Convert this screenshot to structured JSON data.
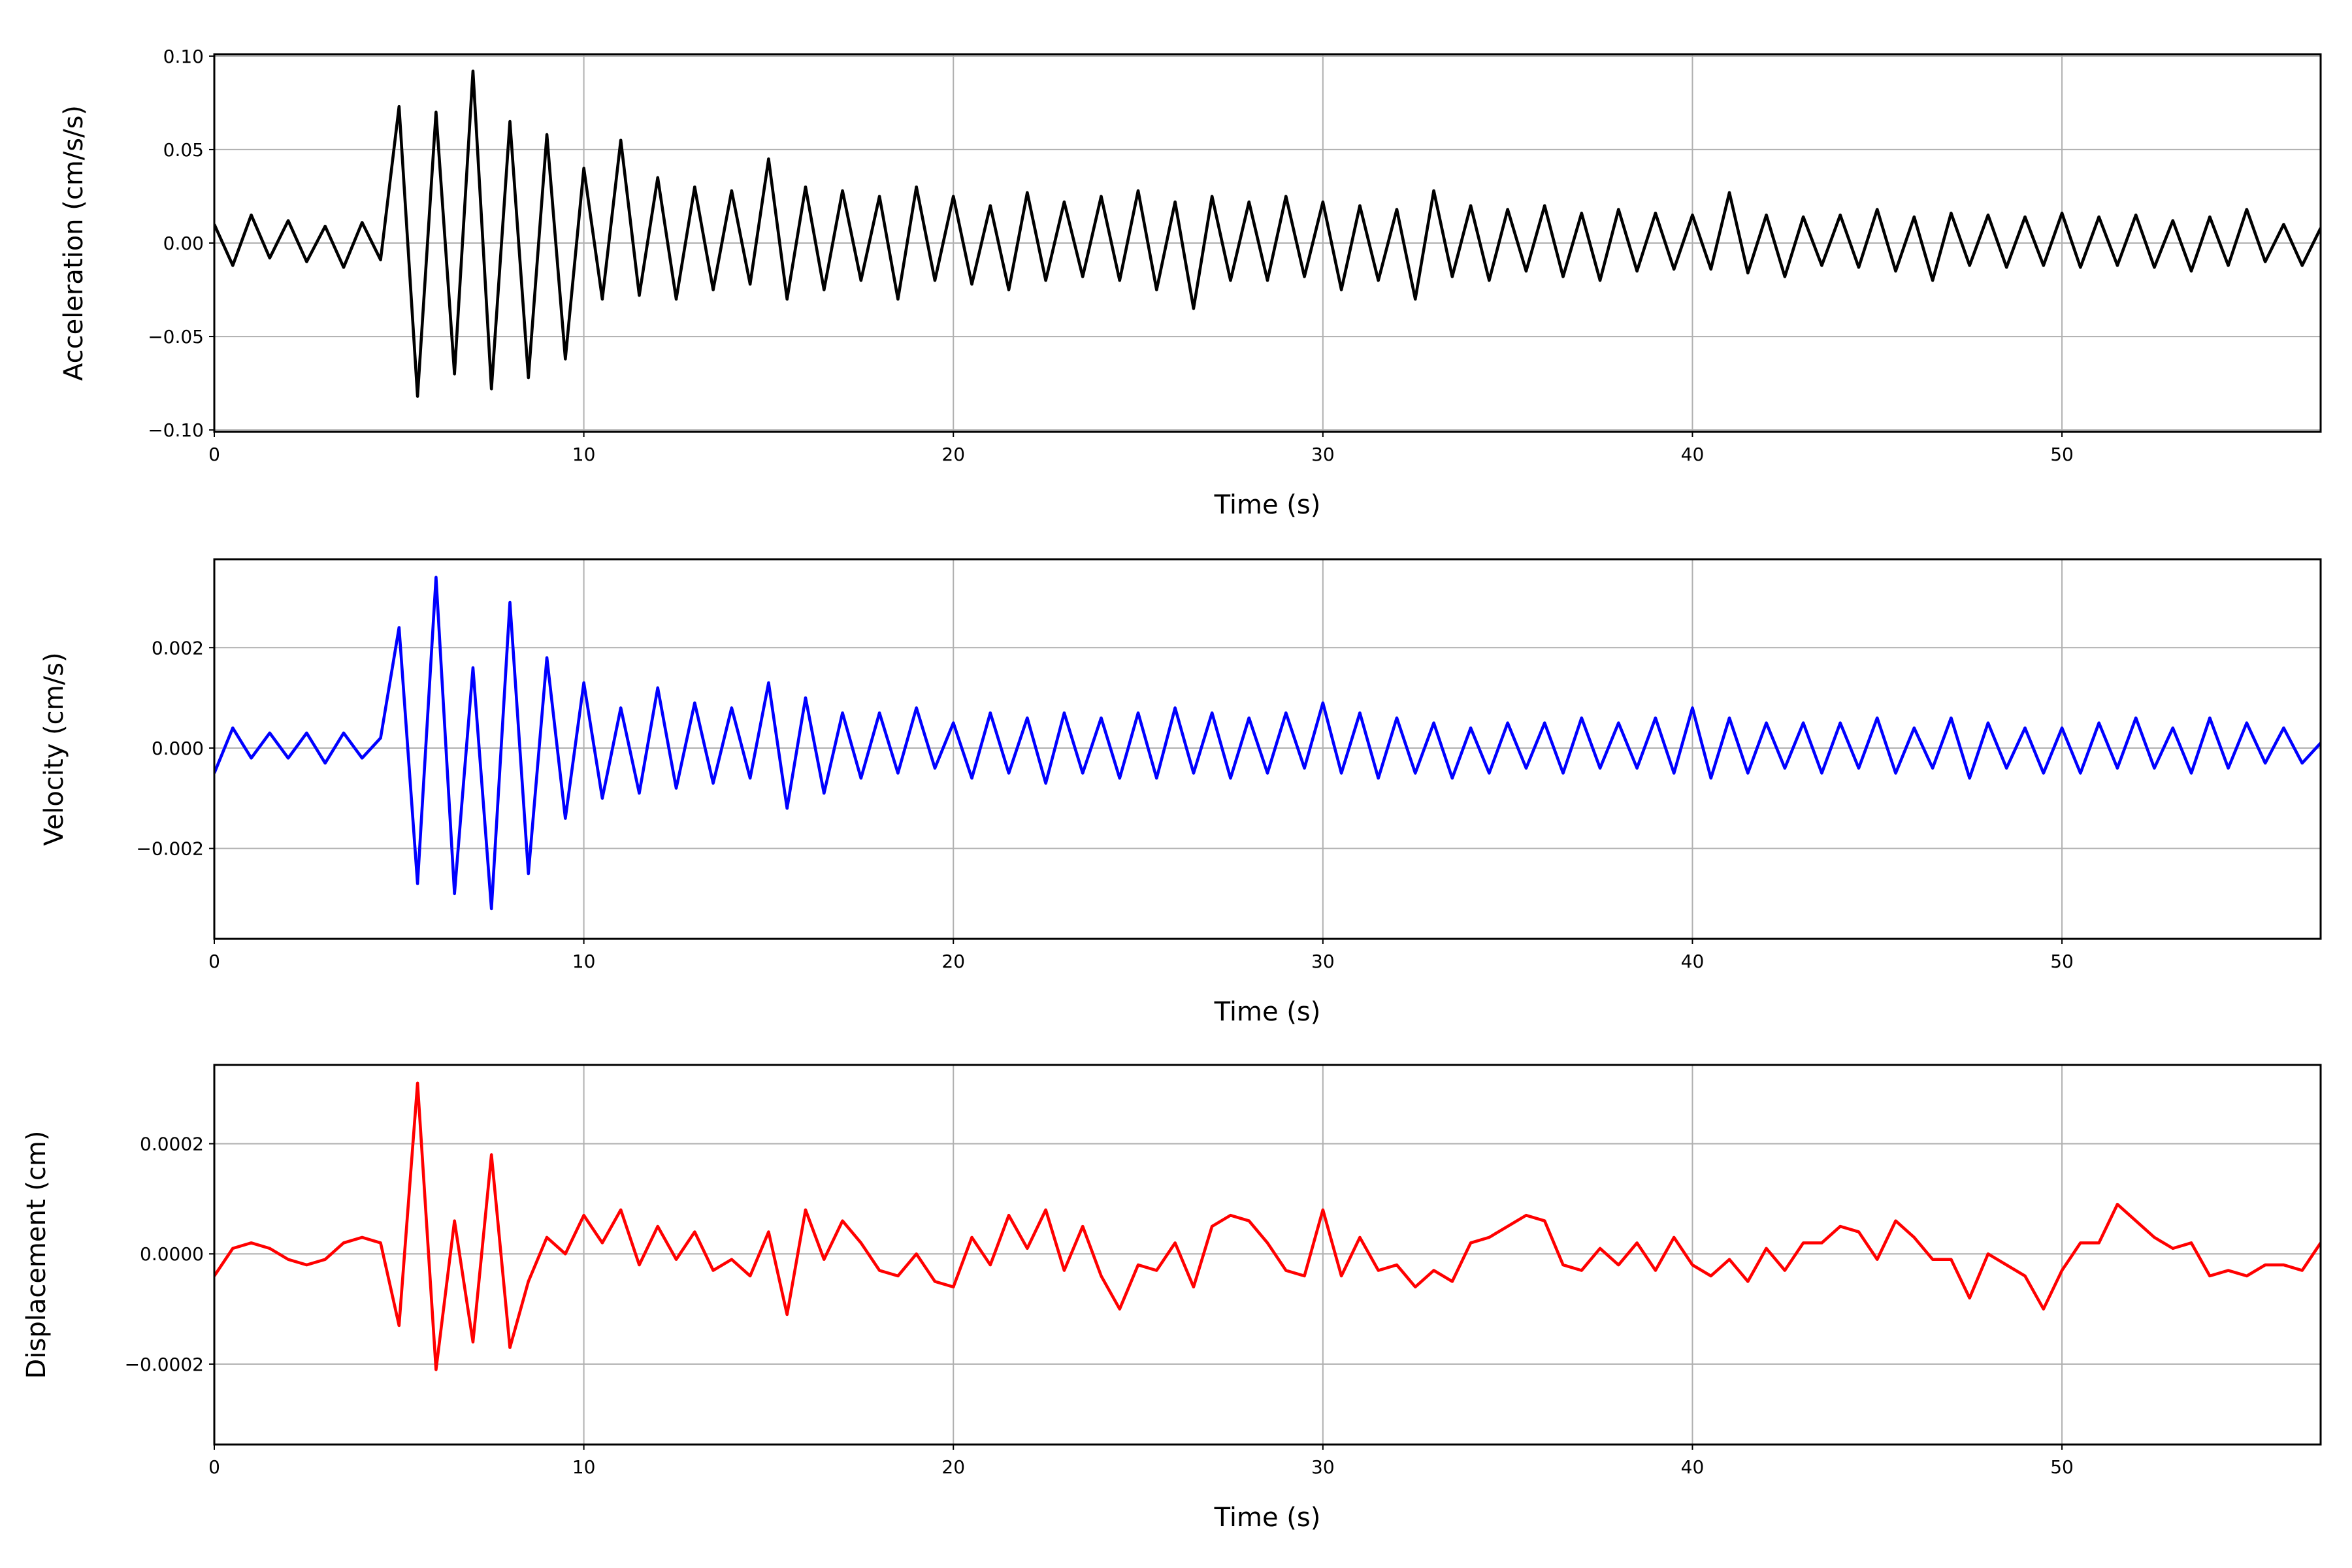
{
  "chart_data": [
    {
      "type": "line",
      "xlabel": "Time (s)",
      "ylabel": "Acceleration (cm/s/s)",
      "color": "#000000",
      "grid": true,
      "xlim": [
        0,
        57
      ],
      "xticks": [
        0,
        10,
        20,
        30,
        40,
        50
      ],
      "ylim": [
        -0.101,
        0.101
      ],
      "yticks": [
        {
          "value": -0.1,
          "label": "−0.10"
        },
        {
          "value": -0.05,
          "label": "−0.05"
        },
        {
          "value": 0,
          "label": "0.00"
        },
        {
          "value": 0.05,
          "label": "0.05"
        },
        {
          "value": 0.1,
          "label": "0.10"
        }
      ],
      "x": [
        0,
        0.5,
        1,
        1.5,
        2,
        2.5,
        3,
        3.5,
        4,
        4.5,
        5,
        5.5,
        6,
        6.5,
        7,
        7.5,
        8,
        8.5,
        9,
        9.5,
        10,
        10.5,
        11,
        11.5,
        12,
        12.5,
        13,
        13.5,
        14,
        14.5,
        15,
        15.5,
        16,
        16.5,
        17,
        17.5,
        18,
        18.5,
        19,
        19.5,
        20,
        20.5,
        21,
        21.5,
        22,
        22.5,
        23,
        23.5,
        24,
        24.5,
        25,
        25.5,
        26,
        26.5,
        27,
        27.5,
        28,
        28.5,
        29,
        29.5,
        30,
        30.5,
        31,
        31.5,
        32,
        32.5,
        33,
        33.5,
        34,
        34.5,
        35,
        35.5,
        36,
        36.5,
        37,
        37.5,
        38,
        38.5,
        39,
        39.5,
        40,
        40.5,
        41,
        41.5,
        42,
        42.5,
        43,
        43.5,
        44,
        44.5,
        45,
        45.5,
        46,
        46.5,
        47,
        47.5,
        48,
        48.5,
        49,
        49.5,
        50,
        50.5,
        51,
        51.5,
        52,
        52.5,
        53,
        53.5,
        54,
        54.5,
        55,
        55.5,
        56,
        56.5,
        57
      ],
      "values": [
        0.01,
        -0.012,
        0.015,
        -0.008,
        0.012,
        -0.01,
        0.009,
        -0.013,
        0.011,
        -0.009,
        0.073,
        -0.082,
        0.07,
        -0.07,
        0.092,
        -0.078,
        0.065,
        -0.072,
        0.058,
        -0.062,
        0.04,
        -0.03,
        0.055,
        -0.028,
        0.035,
        -0.03,
        0.03,
        -0.025,
        0.028,
        -0.022,
        0.045,
        -0.03,
        0.03,
        -0.025,
        0.028,
        -0.02,
        0.025,
        -0.03,
        0.03,
        -0.02,
        0.025,
        -0.022,
        0.02,
        -0.025,
        0.027,
        -0.02,
        0.022,
        -0.018,
        0.025,
        -0.02,
        0.028,
        -0.025,
        0.022,
        -0.035,
        0.025,
        -0.02,
        0.022,
        -0.02,
        0.025,
        -0.018,
        0.022,
        -0.025,
        0.02,
        -0.02,
        0.018,
        -0.03,
        0.028,
        -0.018,
        0.02,
        -0.02,
        0.018,
        -0.015,
        0.02,
        -0.018,
        0.016,
        -0.02,
        0.018,
        -0.015,
        0.016,
        -0.014,
        0.015,
        -0.014,
        0.027,
        -0.016,
        0.015,
        -0.018,
        0.014,
        -0.012,
        0.015,
        -0.013,
        0.018,
        -0.015,
        0.014,
        -0.02,
        0.016,
        -0.012,
        0.015,
        -0.013,
        0.014,
        -0.012,
        0.016,
        -0.013,
        0.014,
        -0.012,
        0.015,
        -0.013,
        0.012,
        -0.015,
        0.014,
        -0.012,
        0.018,
        -0.01,
        0.01,
        -0.012,
        0.008
      ]
    },
    {
      "type": "line",
      "xlabel": "Time (s)",
      "ylabel": "Velocity (cm/s)",
      "color": "#0000ff",
      "grid": true,
      "xlim": [
        0,
        57
      ],
      "xticks": [
        0,
        10,
        20,
        30,
        40,
        50
      ],
      "ylim": [
        -0.0038,
        0.00376
      ],
      "yticks": [
        {
          "value": -0.002,
          "label": "−0.002"
        },
        {
          "value": 0,
          "label": "0.000"
        },
        0.002
      ],
      "x": [
        0,
        0.5,
        1,
        1.5,
        2,
        2.5,
        3,
        3.5,
        4,
        4.5,
        5,
        5.5,
        6,
        6.5,
        7,
        7.5,
        8,
        8.5,
        9,
        9.5,
        10,
        10.5,
        11,
        11.5,
        12,
        12.5,
        13,
        13.5,
        14,
        14.5,
        15,
        15.5,
        16,
        16.5,
        17,
        17.5,
        18,
        18.5,
        19,
        19.5,
        20,
        20.5,
        21,
        21.5,
        22,
        22.5,
        23,
        23.5,
        24,
        24.5,
        25,
        25.5,
        26,
        26.5,
        27,
        27.5,
        28,
        28.5,
        29,
        29.5,
        30,
        30.5,
        31,
        31.5,
        32,
        32.5,
        33,
        33.5,
        34,
        34.5,
        35,
        35.5,
        36,
        36.5,
        37,
        37.5,
        38,
        38.5,
        39,
        39.5,
        40,
        40.5,
        41,
        41.5,
        42,
        42.5,
        43,
        43.5,
        44,
        44.5,
        45,
        45.5,
        46,
        46.5,
        47,
        47.5,
        48,
        48.5,
        49,
        49.5,
        50,
        50.5,
        51,
        51.5,
        52,
        52.5,
        53,
        53.5,
        54,
        54.5,
        55,
        55.5,
        56,
        56.5,
        57
      ],
      "values": [
        -0.0005,
        0.0004,
        -0.0002,
        0.0003,
        -0.0002,
        0.0003,
        -0.0003,
        0.0003,
        -0.0002,
        0.0002,
        0.0024,
        -0.0027,
        0.0034,
        -0.0029,
        0.0016,
        -0.0032,
        0.0029,
        -0.0025,
        0.0018,
        -0.0014,
        0.0013,
        -0.001,
        0.0008,
        -0.0009,
        0.0012,
        -0.0008,
        0.0009,
        -0.0007,
        0.0008,
        -0.0006,
        0.0013,
        -0.0012,
        0.001,
        -0.0009,
        0.0007,
        -0.0006,
        0.0007,
        -0.0005,
        0.0008,
        -0.0004,
        0.0005,
        -0.0006,
        0.0007,
        -0.0005,
        0.0006,
        -0.0007,
        0.0007,
        -0.0005,
        0.0006,
        -0.0006,
        0.0007,
        -0.0006,
        0.0008,
        -0.0005,
        0.0007,
        -0.0006,
        0.0006,
        -0.0005,
        0.0007,
        -0.0004,
        0.0009,
        -0.0005,
        0.0007,
        -0.0006,
        0.0006,
        -0.0005,
        0.0005,
        -0.0006,
        0.0004,
        -0.0005,
        0.0005,
        -0.0004,
        0.0005,
        -0.0005,
        0.0006,
        -0.0004,
        0.0005,
        -0.0004,
        0.0006,
        -0.0005,
        0.0008,
        -0.0006,
        0.0006,
        -0.0005,
        0.0005,
        -0.0004,
        0.0005,
        -0.0005,
        0.0005,
        -0.0004,
        0.0006,
        -0.0005,
        0.0004,
        -0.0004,
        0.0006,
        -0.0006,
        0.0005,
        -0.0004,
        0.0004,
        -0.0005,
        0.0004,
        -0.0005,
        0.0005,
        -0.0004,
        0.0006,
        -0.0004,
        0.0004,
        -0.0005,
        0.0006,
        -0.0004,
        0.0005,
        -0.0003,
        0.0004,
        -0.0003,
        0.0001
      ]
    },
    {
      "type": "line",
      "xlabel": "Time (s)",
      "ylabel": "Displacement (cm)",
      "color": "#ff0000",
      "grid": true,
      "xlim": [
        0,
        57
      ],
      "xticks": [
        0,
        10,
        20,
        30,
        40,
        50
      ],
      "ylim": [
        -0.000346,
        0.000343
      ],
      "yticks": [
        {
          "value": -0.0002,
          "label": "−0.0002"
        },
        {
          "value": 0,
          "label": "0.0000"
        },
        {
          "value": 0.0002,
          "label": "0.0002"
        }
      ],
      "x": [
        0,
        0.5,
        1,
        1.5,
        2,
        2.5,
        3,
        3.5,
        4,
        4.5,
        5,
        5.5,
        6,
        6.5,
        7,
        7.5,
        8,
        8.5,
        9,
        9.5,
        10,
        10.5,
        11,
        11.5,
        12,
        12.5,
        13,
        13.5,
        14,
        14.5,
        15,
        15.5,
        16,
        16.5,
        17,
        17.5,
        18,
        18.5,
        19,
        19.5,
        20,
        20.5,
        21,
        21.5,
        22,
        22.5,
        23,
        23.5,
        24,
        24.5,
        25,
        25.5,
        26,
        26.5,
        27,
        27.5,
        28,
        28.5,
        29,
        29.5,
        30,
        30.5,
        31,
        31.5,
        32,
        32.5,
        33,
        33.5,
        34,
        34.5,
        35,
        35.5,
        36,
        36.5,
        37,
        37.5,
        38,
        38.5,
        39,
        39.5,
        40,
        40.5,
        41,
        41.5,
        42,
        42.5,
        43,
        43.5,
        44,
        44.5,
        45,
        45.5,
        46,
        46.5,
        47,
        47.5,
        48,
        48.5,
        49,
        49.5,
        50,
        50.5,
        51,
        51.5,
        52,
        52.5,
        53,
        53.5,
        54,
        54.5,
        55,
        55.5,
        56,
        56.5,
        57
      ],
      "values": [
        -4e-05,
        1e-05,
        2e-05,
        1e-05,
        -1e-05,
        -2e-05,
        -1e-05,
        2e-05,
        3e-05,
        2e-05,
        -0.00013,
        0.00031,
        -0.00021,
        6e-05,
        -0.00016,
        0.00018,
        -0.00017,
        -5e-05,
        3e-05,
        0,
        7e-05,
        2e-05,
        8e-05,
        -2e-05,
        5e-05,
        -1e-05,
        4e-05,
        -3e-05,
        -1e-05,
        -4e-05,
        4e-05,
        -0.00011,
        8e-05,
        -1e-05,
        6e-05,
        2e-05,
        -3e-05,
        -4e-05,
        0,
        -5e-05,
        -6e-05,
        3e-05,
        -2e-05,
        7e-05,
        1e-05,
        8e-05,
        -3e-05,
        5e-05,
        -4e-05,
        -0.0001,
        -2e-05,
        -3e-05,
        2e-05,
        -6e-05,
        5e-05,
        7e-05,
        6e-05,
        2e-05,
        -3e-05,
        -4e-05,
        8e-05,
        -4e-05,
        3e-05,
        -3e-05,
        -2e-05,
        -6e-05,
        -3e-05,
        -5e-05,
        2e-05,
        3e-05,
        5e-05,
        7e-05,
        6e-05,
        -2e-05,
        -3e-05,
        1e-05,
        -2e-05,
        2e-05,
        -3e-05,
        3e-05,
        -2e-05,
        -4e-05,
        -1e-05,
        -5e-05,
        1e-05,
        -3e-05,
        2e-05,
        2e-05,
        5e-05,
        4e-05,
        -1e-05,
        6e-05,
        3e-05,
        -1e-05,
        -1e-05,
        -8e-05,
        0,
        -2e-05,
        -4e-05,
        -0.0001,
        -3e-05,
        2e-05,
        2e-05,
        9e-05,
        6e-05,
        3e-05,
        1e-05,
        2e-05,
        -4e-05,
        -3e-05,
        -4e-05,
        -2e-05,
        -2e-05,
        -3e-05,
        2e-05
      ]
    }
  ]
}
